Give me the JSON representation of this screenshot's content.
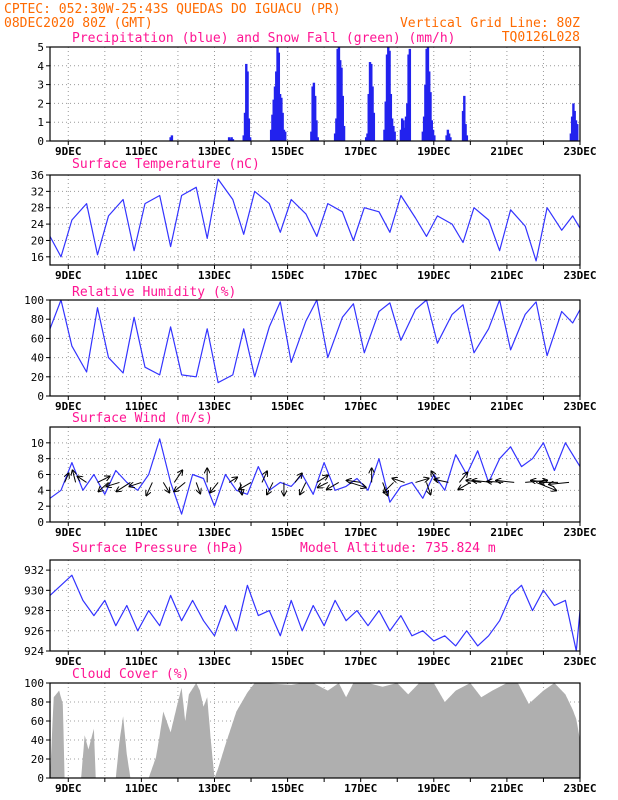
{
  "header": {
    "line1": "CPTEC:  052:30W-25:43S  QUEDAS DO IGUACU (PR)",
    "line2_left": "08DEC2020 80Z (GMT)",
    "line2_right": "Vertical Grid Line: 80Z",
    "line3_right": "TQ0126L028",
    "color": "#ff6a00"
  },
  "colors": {
    "title": "#ff1493",
    "line": "#3333ff",
    "rain": "#2222ee",
    "snow": "#00aa00",
    "cloud": "#a9a9a9",
    "wind_arrow": "#000000"
  },
  "chart_data": [
    {
      "id": "precip",
      "type": "bar",
      "title": "Precipitation (blue) and Snow Fall (green) (mm/h)",
      "ylim": [
        0,
        5
      ],
      "yticks": [
        0,
        1,
        2,
        3,
        4,
        5
      ],
      "x_day_range": [
        8.5,
        23.0
      ],
      "bar_day_step": 0.1,
      "xtick_days": [
        9,
        11,
        13,
        15,
        17,
        19,
        21,
        23
      ],
      "xtick_labels": [
        "9DEC",
        "11DEC",
        "13DEC",
        "15DEC",
        "17DEC",
        "19DEC",
        "21DEC",
        "23DEC"
      ],
      "rain_events": [
        {
          "day": 11.8,
          "values": [
            0.2,
            0.3
          ]
        },
        {
          "day": 13.4,
          "values": [
            0.2,
            0.1,
            0.2,
            0.1
          ]
        },
        {
          "day": 13.8,
          "values": [
            0.3,
            1.5,
            4.1,
            3.7,
            1.2,
            0.2
          ]
        },
        {
          "day": 14.55,
          "values": [
            0.6,
            1.4,
            2.2,
            2.9,
            3.7,
            5.0,
            4.7,
            2.5,
            2.3,
            1.5,
            0.6,
            0.5
          ]
        },
        {
          "day": 15.65,
          "values": [
            0.5,
            2.9,
            3.1,
            2.4,
            1.1,
            0.2
          ]
        },
        {
          "day": 16.3,
          "values": [
            0.4,
            1.2,
            4.9,
            5.0,
            4.3,
            3.9,
            2.4,
            0.8
          ]
        },
        {
          "day": 17.15,
          "values": [
            0.2,
            0.4,
            2.5,
            4.2,
            4.1,
            2.9,
            1.5
          ]
        },
        {
          "day": 17.65,
          "values": [
            0.6,
            2.1,
            4.6,
            5.0,
            4.8,
            2.5,
            1.2,
            0.8,
            0.5
          ]
        },
        {
          "day": 18.1,
          "values": [
            0.6,
            1.2,
            1.1,
            0.7,
            1.3,
            2.0,
            4.6,
            4.9
          ]
        },
        {
          "day": 18.7,
          "values": [
            0.5,
            1.3,
            3.0,
            4.9,
            5.0,
            3.7,
            2.6,
            1.1,
            0.6,
            0.3
          ]
        },
        {
          "day": 19.35,
          "values": [
            0.3,
            0.6,
            0.4,
            0.2
          ]
        },
        {
          "day": 19.8,
          "values": [
            1.6,
            2.4,
            0.9,
            0.3
          ]
        },
        {
          "day": 22.75,
          "values": [
            0.4,
            1.3,
            2.0,
            1.6,
            1.1,
            0.9
          ]
        }
      ],
      "snow": "none"
    },
    {
      "id": "temp",
      "type": "line",
      "title": "Surface Temperature (nC)",
      "ylim": [
        14,
        36
      ],
      "yticks": [
        16,
        20,
        24,
        28,
        32,
        36
      ],
      "xtick_days": [
        9,
        11,
        13,
        15,
        17,
        19,
        21,
        23
      ],
      "xtick_labels": [
        "9DEC",
        "11DEC",
        "13DEC",
        "15DEC",
        "17DEC",
        "19DEC",
        "21DEC",
        "23DEC"
      ],
      "x": [
        8.5,
        8.8,
        9.1,
        9.5,
        9.8,
        10.1,
        10.5,
        10.8,
        11.1,
        11.5,
        11.8,
        12.1,
        12.5,
        12.8,
        13.1,
        13.5,
        13.8,
        14.1,
        14.5,
        14.8,
        15.1,
        15.5,
        15.8,
        16.1,
        16.5,
        16.8,
        17.1,
        17.5,
        17.8,
        18.1,
        18.5,
        18.8,
        19.1,
        19.5,
        19.8,
        20.1,
        20.5,
        20.8,
        21.1,
        21.5,
        21.8,
        22.1,
        22.5,
        22.8,
        23.0
      ],
      "y": [
        21,
        16,
        25,
        29,
        16.5,
        26,
        30,
        17.5,
        29,
        31,
        18.5,
        31,
        33,
        20.5,
        35,
        30,
        21.5,
        32,
        29,
        22,
        30,
        26.5,
        21,
        29,
        27,
        20,
        28,
        27,
        22,
        31,
        25.5,
        21,
        26,
        24,
        19.5,
        28,
        25,
        17.5,
        27.5,
        23.5,
        15,
        28,
        22.5,
        26,
        23
      ]
    },
    {
      "id": "rh",
      "type": "line",
      "title": "Relative Humidity (%)",
      "ylim": [
        0,
        100
      ],
      "yticks": [
        0,
        20,
        40,
        60,
        80,
        100
      ],
      "xtick_days": [
        9,
        11,
        13,
        15,
        17,
        19,
        21,
        23
      ],
      "xtick_labels": [
        "9DEC",
        "11DEC",
        "13DEC",
        "15DEC",
        "17DEC",
        "19DEC",
        "21DEC",
        "23DEC"
      ],
      "x": [
        8.5,
        8.8,
        9.1,
        9.5,
        9.8,
        10.1,
        10.5,
        10.8,
        11.1,
        11.5,
        11.8,
        12.1,
        12.5,
        12.8,
        13.1,
        13.5,
        13.8,
        14.1,
        14.5,
        14.8,
        15.1,
        15.5,
        15.8,
        16.1,
        16.5,
        16.8,
        17.1,
        17.5,
        17.8,
        18.1,
        18.5,
        18.8,
        19.1,
        19.5,
        19.8,
        20.1,
        20.5,
        20.8,
        21.1,
        21.5,
        21.8,
        22.1,
        22.5,
        22.8,
        23.0
      ],
      "y": [
        70,
        100,
        52,
        25,
        92,
        40,
        24,
        82,
        30,
        22,
        72,
        22,
        20,
        70,
        14,
        22,
        70,
        20,
        72,
        98,
        35,
        78,
        100,
        40,
        82,
        96,
        45,
        88,
        97,
        58,
        90,
        100,
        55,
        85,
        95,
        45,
        70,
        100,
        48,
        85,
        98,
        42,
        88,
        76,
        90
      ]
    },
    {
      "id": "wind",
      "type": "line",
      "title": "Surface Wind (m/s)",
      "ylim": [
        0,
        12
      ],
      "yticks": [
        0,
        2,
        4,
        6,
        8,
        10
      ],
      "xtick_days": [
        9,
        11,
        13,
        15,
        17,
        19,
        21,
        23
      ],
      "xtick_labels": [
        "9DEC",
        "11DEC",
        "13DEC",
        "15DEC",
        "17DEC",
        "19DEC",
        "21DEC",
        "23DEC"
      ],
      "x": [
        8.5,
        8.8,
        9.1,
        9.4,
        9.7,
        10.0,
        10.3,
        10.6,
        10.9,
        11.2,
        11.5,
        11.8,
        12.1,
        12.4,
        12.7,
        13.0,
        13.3,
        13.6,
        13.9,
        14.2,
        14.5,
        14.8,
        15.1,
        15.4,
        15.7,
        16.0,
        16.3,
        16.6,
        16.9,
        17.2,
        17.5,
        17.8,
        18.1,
        18.4,
        18.7,
        19.0,
        19.3,
        19.6,
        19.9,
        20.2,
        20.5,
        20.8,
        21.1,
        21.4,
        21.7,
        22.0,
        22.3,
        22.6,
        23.0
      ],
      "y": [
        3,
        4,
        7.5,
        4,
        6,
        3.5,
        6.5,
        5,
        4,
        6,
        10.5,
        5,
        1,
        6,
        5.5,
        2,
        6,
        4,
        3.5,
        7,
        4,
        5,
        4.5,
        6,
        3.5,
        7.5,
        4,
        4.5,
        5.5,
        4,
        8,
        2.5,
        4.5,
        5,
        3,
        6,
        4,
        8.5,
        6,
        9,
        5,
        8,
        9.5,
        7,
        8,
        10,
        6.5,
        10,
        7
      ],
      "arrows": [
        {
          "day": 8.9,
          "dx": 4,
          "dy": 9
        },
        {
          "day": 9.2,
          "dx": -3,
          "dy": 12
        },
        {
          "day": 9.5,
          "dx": -9,
          "dy": 6
        },
        {
          "day": 9.8,
          "dx": 12,
          "dy": 6
        },
        {
          "day": 10.1,
          "dx": -10,
          "dy": -9
        },
        {
          "day": 10.4,
          "dx": -13,
          "dy": -4
        },
        {
          "day": 10.7,
          "dx": -14,
          "dy": -9
        },
        {
          "day": 11.0,
          "dx": -12,
          "dy": -4
        },
        {
          "day": 11.3,
          "dx": -6,
          "dy": -13
        },
        {
          "day": 11.6,
          "dx": 6,
          "dy": -10
        },
        {
          "day": 11.9,
          "dx": 8,
          "dy": 12
        },
        {
          "day": 12.2,
          "dx": -11,
          "dy": -9
        },
        {
          "day": 12.5,
          "dx": 4,
          "dy": -11
        },
        {
          "day": 12.8,
          "dx": 0,
          "dy": 14
        },
        {
          "day": 13.1,
          "dx": -8,
          "dy": -10
        },
        {
          "day": 13.4,
          "dx": 8,
          "dy": 5
        },
        {
          "day": 13.7,
          "dx": 2,
          "dy": -12
        },
        {
          "day": 14.0,
          "dx": -12,
          "dy": -7
        },
        {
          "day": 14.3,
          "dx": 5,
          "dy": 11
        },
        {
          "day": 14.6,
          "dx": -6,
          "dy": -12
        },
        {
          "day": 14.9,
          "dx": 0,
          "dy": -13
        },
        {
          "day": 15.2,
          "dx": 7,
          "dy": 9
        },
        {
          "day": 15.5,
          "dx": -6,
          "dy": -12
        },
        {
          "day": 15.8,
          "dx": 11,
          "dy": 7
        },
        {
          "day": 16.1,
          "dx": -10,
          "dy": -5
        },
        {
          "day": 16.4,
          "dx": -12,
          "dy": -7
        },
        {
          "day": 16.7,
          "dx": 16,
          "dy": -5
        },
        {
          "day": 17.0,
          "dx": -14,
          "dy": 2
        },
        {
          "day": 17.3,
          "dx": 0,
          "dy": 14
        },
        {
          "day": 17.6,
          "dx": 5,
          "dy": -13
        },
        {
          "day": 17.9,
          "dx": -10,
          "dy": -10
        },
        {
          "day": 18.2,
          "dx": -12,
          "dy": 4
        },
        {
          "day": 18.5,
          "dx": 13,
          "dy": 4
        },
        {
          "day": 18.8,
          "dx": 4,
          "dy": -12
        },
        {
          "day": 19.1,
          "dx": -6,
          "dy": 11
        },
        {
          "day": 19.4,
          "dx": -14,
          "dy": 3
        },
        {
          "day": 19.7,
          "dx": 8,
          "dy": 10
        },
        {
          "day": 20.0,
          "dx": -12,
          "dy": -7
        },
        {
          "day": 20.3,
          "dx": -15,
          "dy": 2
        },
        {
          "day": 20.6,
          "dx": -20,
          "dy": 2
        },
        {
          "day": 20.9,
          "dx": -16,
          "dy": 1
        },
        {
          "day": 21.2,
          "dx": -18,
          "dy": 2
        },
        {
          "day": 21.5,
          "dx": 22,
          "dy": 2
        },
        {
          "day": 21.8,
          "dx": 20,
          "dy": -8
        },
        {
          "day": 22.1,
          "dx": -16,
          "dy": 2
        },
        {
          "day": 22.4,
          "dx": -18,
          "dy": 0
        },
        {
          "day": 22.7,
          "dx": -20,
          "dy": -2
        }
      ]
    },
    {
      "id": "pres",
      "type": "line",
      "title": "Surface Pressure (hPa)",
      "extra_label": "Model Altitude: 735.824 m",
      "ylim": [
        924,
        933
      ],
      "yticks": [
        924,
        926,
        928,
        930,
        932
      ],
      "xtick_days": [
        9,
        11,
        13,
        15,
        17,
        19,
        21,
        23
      ],
      "xtick_labels": [
        "9DEC",
        "11DEC",
        "13DEC",
        "15DEC",
        "17DEC",
        "19DEC",
        "21DEC",
        "23DEC"
      ],
      "x": [
        8.5,
        8.8,
        9.1,
        9.4,
        9.7,
        10.0,
        10.3,
        10.6,
        10.9,
        11.2,
        11.5,
        11.8,
        12.1,
        12.4,
        12.7,
        13.0,
        13.3,
        13.6,
        13.9,
        14.2,
        14.5,
        14.8,
        15.1,
        15.4,
        15.7,
        16.0,
        16.3,
        16.6,
        16.9,
        17.2,
        17.5,
        17.8,
        18.1,
        18.4,
        18.7,
        19.0,
        19.3,
        19.6,
        19.9,
        20.2,
        20.5,
        20.8,
        21.1,
        21.4,
        21.7,
        22.0,
        22.3,
        22.6,
        22.9,
        23.0
      ],
      "y": [
        929.5,
        930.5,
        931.5,
        929,
        927.5,
        929,
        926.5,
        928.5,
        926,
        928,
        926.5,
        929.5,
        927,
        929,
        927,
        925.5,
        928.5,
        926,
        930.5,
        927.5,
        928,
        925.5,
        929,
        926,
        928.5,
        926.5,
        929,
        927,
        928,
        926.5,
        928,
        926,
        927.5,
        925.5,
        926,
        925,
        925.5,
        924.5,
        926,
        924.5,
        925.5,
        927,
        929.5,
        930.5,
        928,
        930,
        928.5,
        929,
        924,
        928
      ]
    },
    {
      "id": "cloud",
      "type": "area",
      "title": "Cloud Cover (%)",
      "ylim": [
        0,
        100
      ],
      "yticks": [
        0,
        20,
        40,
        60,
        80,
        100
      ],
      "xtick_days": [
        9,
        11,
        13,
        15,
        17,
        19,
        21,
        23
      ],
      "xtick_labels": [
        "9DEC",
        "11DEC",
        "13DEC",
        "15DEC",
        "17DEC",
        "19DEC",
        "21DEC",
        "23DEC"
      ],
      "x": [
        8.5,
        8.6,
        8.75,
        8.85,
        8.9,
        9.35,
        9.45,
        9.55,
        9.7,
        9.75,
        10.3,
        10.4,
        10.5,
        10.6,
        10.7,
        11.2,
        11.4,
        11.5,
        11.6,
        11.8,
        12.0,
        12.1,
        12.2,
        12.3,
        12.5,
        12.6,
        12.7,
        12.8,
        12.9,
        13.0,
        13.1,
        13.3,
        13.6,
        13.9,
        14.1,
        14.3,
        15.1,
        15.4,
        15.7,
        16.1,
        16.4,
        16.6,
        16.8,
        17.2,
        17.6,
        18.0,
        18.3,
        18.6,
        19.0,
        19.3,
        19.6,
        20.0,
        20.3,
        20.6,
        21.0,
        21.3,
        21.6,
        22.0,
        22.3,
        22.6,
        22.8,
        22.9,
        23.0
      ],
      "y": [
        0,
        85,
        92,
        78,
        0,
        0,
        45,
        30,
        52,
        0,
        0,
        38,
        65,
        25,
        0,
        0,
        22,
        45,
        70,
        48,
        80,
        95,
        60,
        88,
        100,
        92,
        75,
        85,
        40,
        0,
        10,
        35,
        70,
        90,
        100,
        100,
        98,
        100,
        100,
        92,
        100,
        85,
        100,
        100,
        96,
        100,
        88,
        100,
        100,
        80,
        92,
        100,
        85,
        92,
        100,
        100,
        78,
        92,
        100,
        88,
        72,
        62,
        40
      ]
    }
  ]
}
